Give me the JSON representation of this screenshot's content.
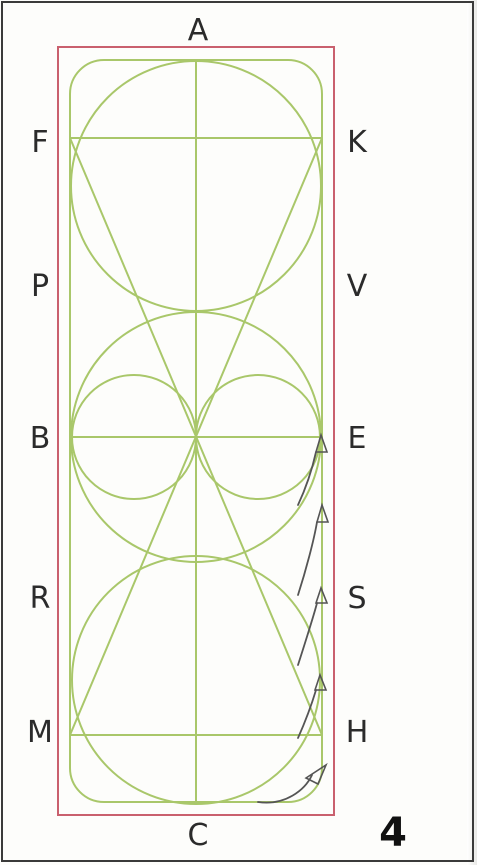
{
  "labels": {
    "A": "A",
    "C": "C",
    "F": "F",
    "K": "K",
    "P": "P",
    "V": "V",
    "B": "B",
    "E": "E",
    "R": "R",
    "S": "S",
    "M": "M",
    "H": "H"
  },
  "page_number": "4",
  "colors": {
    "arena_border": "#c9606e",
    "construction_lines": "#a9c76a",
    "arrows": "#555555",
    "labels": "#2b2b2b"
  }
}
